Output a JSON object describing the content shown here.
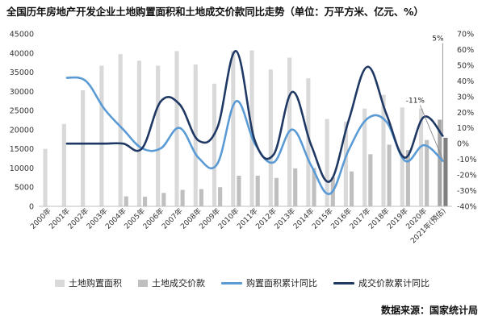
{
  "title": "全国历年房地产开发企业土地购置面积和土地成交价款同比走势（单位：万平方米、亿元、%）",
  "source": "数据来源：国家统计局",
  "colors": {
    "area_bar": "#d9d9d9",
    "price_bar": "#bfbfbf",
    "area_line": "#5b9bd5",
    "price_line": "#1f3864",
    "forecast_bar": "#7f7f7f"
  },
  "chart_data": {
    "type": "bar+line",
    "categories": [
      "2000年",
      "2001年",
      "2002年",
      "2003年",
      "2004年",
      "2005年",
      "2006年",
      "2007年",
      "2008年",
      "2009年",
      "2010年",
      "2011年",
      "2012年",
      "2013年",
      "2014年",
      "2015年",
      "2016年",
      "2017年",
      "2018年",
      "2019年",
      "2020年",
      "2021年(预估)"
    ],
    "y_left": {
      "min": 0,
      "max": 45000,
      "step": 5000,
      "ticks": [
        "0",
        "5000",
        "10000",
        "15000",
        "20000",
        "25000",
        "30000",
        "35000",
        "40000",
        "45000"
      ]
    },
    "y_right": {
      "min": -40,
      "max": 70,
      "step": 10,
      "ticks": [
        "-40%",
        "-30%",
        "-20%",
        "-10%",
        "0%",
        "10%",
        "20%",
        "30%",
        "40%",
        "50%",
        "60%",
        "70%"
      ]
    },
    "series": [
      {
        "name": "土地购置面积",
        "kind": "bar",
        "axis": "left",
        "values": [
          15000,
          21500,
          30300,
          36700,
          39700,
          38000,
          36700,
          40500,
          37000,
          32000,
          40500,
          40700,
          35700,
          38800,
          33400,
          22800,
          22100,
          25500,
          29100,
          25800,
          25500,
          22600
        ]
      },
      {
        "name": "土地成交价款",
        "kind": "bar",
        "axis": "left",
        "values": [
          null,
          null,
          null,
          null,
          2600,
          2500,
          3500,
          4300,
          4500,
          5000,
          8000,
          8000,
          7400,
          9900,
          10000,
          7600,
          9100,
          13600,
          16100,
          14700,
          17300,
          17900
        ]
      },
      {
        "name": "购置面积累计同比",
        "kind": "line",
        "axis": "right",
        "values": [
          null,
          42,
          40,
          22,
          9,
          -3,
          -3,
          10,
          -9,
          -13,
          27,
          0,
          -12,
          9,
          -14,
          -32,
          -4,
          16,
          14,
          -11,
          -1,
          -11
        ]
      },
      {
        "name": "成交价款累计同比",
        "kind": "line",
        "axis": "right",
        "values": [
          null,
          0,
          0,
          0,
          0,
          -3,
          27,
          25,
          2,
          10,
          59,
          2,
          -7,
          33,
          -1,
          -24,
          15,
          49,
          19,
          -9,
          17,
          5
        ]
      }
    ],
    "annotations": [
      {
        "text": "-11%",
        "category": "2021年(预估)",
        "series": "购置面积累计同比"
      },
      {
        "text": "5%",
        "category": "2021年(预估)",
        "series": "成交价款累计同比"
      }
    ],
    "legend_position": "bottom",
    "grid": false
  }
}
